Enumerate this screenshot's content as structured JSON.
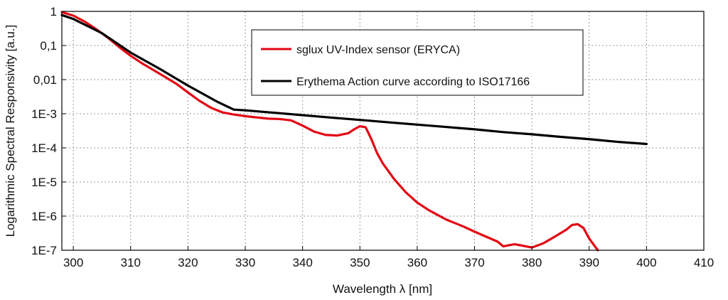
{
  "chart_data": {
    "type": "line",
    "title": "",
    "xlabel": "Wavelength λ [nm]",
    "ylabel": "Logarithmic Spectral Responsivity [a.u.]",
    "xlim": [
      298,
      410
    ],
    "ylim": [
      1e-07,
      1
    ],
    "yscale": "log",
    "grid": true,
    "x_ticks": [
      300,
      310,
      320,
      330,
      340,
      350,
      360,
      370,
      380,
      390,
      400,
      410
    ],
    "x_tick_labels": [
      "300",
      "310",
      "320",
      "330",
      "340",
      "350",
      "360",
      "370",
      "380",
      "390",
      "400",
      "410"
    ],
    "y_ticks": [
      1,
      0.1,
      0.01,
      0.001,
      0.0001,
      1e-05,
      1e-06,
      1e-07
    ],
    "y_tick_labels": [
      "1",
      "0,1",
      "0,01",
      "1E-3",
      "1E-4",
      "1E-5",
      "1E-6",
      "1E-7"
    ],
    "legend": {
      "placement": "top-center",
      "entries": [
        {
          "label": "sglux UV-Index sensor (ERYCA)",
          "color": "#e30613"
        },
        {
          "label": "Erythema Action curve according to ISO17166",
          "color": "#000000"
        }
      ]
    },
    "series": [
      {
        "name": "sglux UV-Index sensor (ERYCA)",
        "color": "#e30613",
        "x": [
          298,
          300,
          302,
          304,
          306,
          308,
          310,
          312,
          314,
          316,
          318,
          320,
          322,
          324,
          326,
          328,
          330,
          332,
          334,
          336,
          338,
          340,
          342,
          344,
          346,
          348,
          349,
          350,
          351,
          352,
          353,
          354,
          356,
          358,
          360,
          362,
          365,
          368,
          370,
          372,
          374,
          375,
          376,
          377,
          378,
          380,
          382,
          384,
          386,
          387,
          388,
          389,
          390,
          391.5
        ],
        "y": [
          0.95,
          0.75,
          0.5,
          0.3,
          0.17,
          0.09,
          0.05,
          0.03,
          0.019,
          0.012,
          0.0075,
          0.0042,
          0.0024,
          0.0015,
          0.0011,
          0.00095,
          0.00085,
          0.00078,
          0.00072,
          0.0007,
          0.00064,
          0.00045,
          0.0003,
          0.00024,
          0.00023,
          0.00027,
          0.00035,
          0.00043,
          0.0004,
          0.00018,
          7e-05,
          3.5e-05,
          1.2e-05,
          5e-06,
          2.5e-06,
          1.5e-06,
          8e-07,
          5e-07,
          3.5e-07,
          2.5e-07,
          1.8e-07,
          1.3e-07,
          1.4e-07,
          1.5e-07,
          1.4e-07,
          1.2e-07,
          1.6e-07,
          2.5e-07,
          4e-07,
          5.5e-07,
          5.8e-07,
          4.5e-07,
          2.2e-07,
          1e-07
        ]
      },
      {
        "name": "Erythema Action curve according to ISO17166",
        "color": "#000000",
        "x": [
          298,
          300,
          305,
          310,
          315,
          320,
          325,
          328,
          330,
          335,
          340,
          345,
          350,
          355,
          360,
          365,
          370,
          375,
          380,
          385,
          390,
          395,
          400
        ],
        "y": [
          0.78,
          0.6,
          0.23,
          0.062,
          0.021,
          0.0067,
          0.0023,
          0.00132,
          0.00126,
          0.00107,
          0.00091,
          0.00077,
          0.00066,
          0.00056,
          0.00048,
          0.00041,
          0.00035,
          0.00029,
          0.00025,
          0.00021,
          0.00018,
          0.00015,
          0.00013
        ]
      }
    ]
  }
}
